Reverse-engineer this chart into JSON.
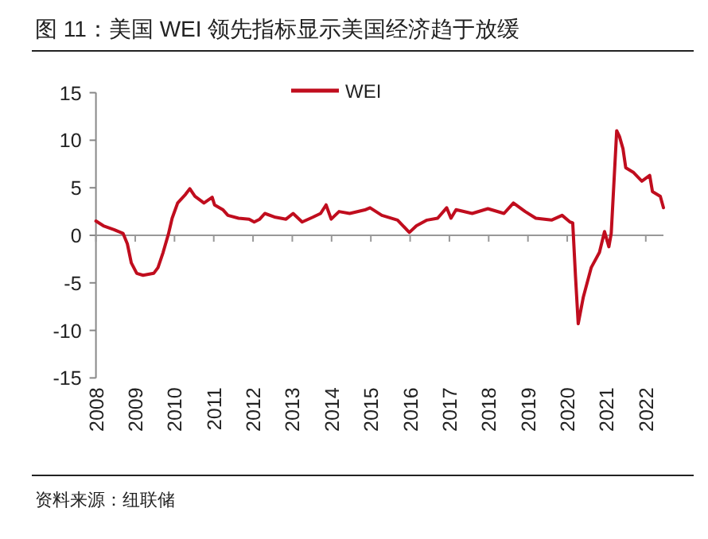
{
  "chart_data": {
    "type": "line",
    "title": "图 11：美国 WEI 领先指标显示美国经济趋于放缓",
    "annotations": [
      "资料来源：纽联储"
    ],
    "xlim": [
      2008,
      2022.45
    ],
    "xticks": [
      2008,
      2009,
      2010,
      2011,
      2012,
      2013,
      2014,
      2015,
      2016,
      2017,
      2018,
      2019,
      2020,
      2021,
      2022
    ],
    "ylim": [
      -15,
      15
    ],
    "yticks": [
      -15,
      -10,
      -5,
      0,
      5,
      10,
      15
    ],
    "legend": "top",
    "marker": "none",
    "line_style": "solid",
    "series": [
      {
        "name": "WEI",
        "color": "#c00d1e",
        "x": [
          2008.0,
          2008.19,
          2008.46,
          2008.69,
          2008.8,
          2008.9,
          2009.04,
          2009.2,
          2009.47,
          2009.58,
          2009.71,
          2009.85,
          2009.94,
          2010.08,
          2010.28,
          2010.39,
          2010.52,
          2010.75,
          2010.96,
          2011.02,
          2011.23,
          2011.36,
          2011.63,
          2011.9,
          2012.03,
          2012.17,
          2012.3,
          2012.57,
          2012.84,
          2013.02,
          2013.25,
          2013.52,
          2013.72,
          2013.86,
          2013.99,
          2014.19,
          2014.46,
          2014.87,
          2014.98,
          2015.28,
          2015.68,
          2015.98,
          2016.16,
          2016.43,
          2016.7,
          2016.93,
          2017.04,
          2017.17,
          2017.58,
          2017.98,
          2018.39,
          2018.63,
          2018.93,
          2019.2,
          2019.6,
          2019.87,
          2020.07,
          2020.14,
          2020.21,
          2020.28,
          2020.41,
          2020.61,
          2020.82,
          2020.95,
          2021.06,
          2021.12,
          2021.26,
          2021.33,
          2021.42,
          2021.49,
          2021.69,
          2021.9,
          2022.1,
          2022.17,
          2022.37,
          2022.45
        ],
        "values": [
          1.5,
          1.0,
          0.6,
          0.2,
          -0.9,
          -2.9,
          -4.0,
          -4.2,
          -4.0,
          -3.4,
          -1.8,
          0.2,
          1.8,
          3.4,
          4.3,
          4.9,
          4.1,
          3.4,
          4.0,
          3.2,
          2.7,
          2.1,
          1.8,
          1.7,
          1.4,
          1.7,
          2.3,
          1.9,
          1.7,
          2.3,
          1.4,
          1.9,
          2.3,
          3.2,
          1.7,
          2.5,
          2.3,
          2.7,
          2.9,
          2.1,
          1.6,
          0.3,
          1.0,
          1.6,
          1.8,
          2.9,
          1.8,
          2.7,
          2.3,
          2.8,
          2.3,
          3.4,
          2.5,
          1.8,
          1.6,
          2.1,
          1.4,
          1.3,
          -4.3,
          -9.3,
          -6.5,
          -3.4,
          -1.8,
          0.4,
          -1.2,
          0.2,
          11.0,
          10.4,
          9.1,
          7.1,
          6.6,
          5.7,
          6.3,
          4.6,
          4.1,
          2.9
        ]
      }
    ]
  }
}
